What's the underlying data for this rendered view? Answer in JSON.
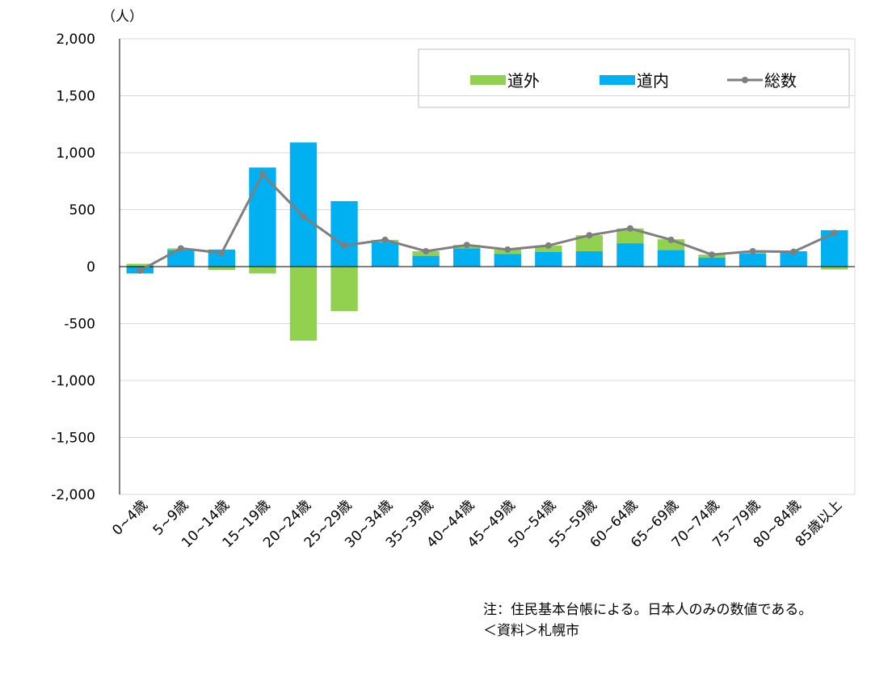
{
  "chart_data": {
    "type": "bar",
    "stacked": true,
    "unit": "（人）",
    "categories": [
      "0~4歳",
      "5~9歳",
      "10~14歳",
      "15~19歳",
      "20~24歳",
      "25~29歳",
      "30~34歳",
      "35~39歳",
      "40~44歳",
      "45~49歳",
      "50~54歳",
      "55~59歳",
      "60~64歳",
      "65~69歳",
      "70~74歳",
      "75~79歳",
      "80~84歳",
      "85歳以上"
    ],
    "series": [
      {
        "name": "道外",
        "type": "bar",
        "color": "#92d050",
        "values": [
          25,
          15,
          -30,
          -60,
          -650,
          -390,
          20,
          40,
          30,
          40,
          55,
          140,
          130,
          95,
          25,
          20,
          0,
          -25
        ]
      },
      {
        "name": "道内",
        "type": "bar",
        "color": "#00b0f0",
        "values": [
          -60,
          145,
          150,
          870,
          1090,
          575,
          215,
          95,
          160,
          110,
          130,
          135,
          205,
          145,
          80,
          115,
          135,
          320
        ]
      },
      {
        "name": "総数",
        "type": "line",
        "color": "#7f7f7f",
        "values": [
          -35,
          160,
          120,
          810,
          440,
          185,
          235,
          135,
          190,
          150,
          185,
          275,
          335,
          235,
          105,
          135,
          130,
          295
        ]
      }
    ],
    "ylim": [
      -2000,
      2000
    ],
    "yticks": [
      {
        "value": -2000,
        "label": "-2,000"
      },
      {
        "value": -1500,
        "label": "-1,500"
      },
      {
        "value": -1000,
        "label": "-1,000"
      },
      -500,
      0,
      500,
      {
        "value": 1000,
        "label": "1,000"
      },
      {
        "value": 1500,
        "label": "1,500"
      },
      {
        "value": 2000,
        "label": "2,000"
      }
    ],
    "grid": true
  },
  "notes": [
    "注：住民基本台帳による。日本人のみの数値である。",
    "＜資料＞札幌市"
  ]
}
